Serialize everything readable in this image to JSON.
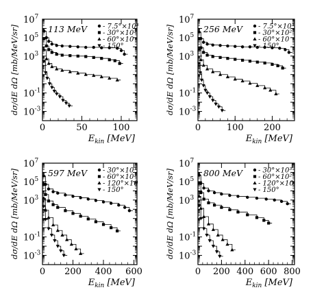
{
  "chart_data": [
    {
      "type": "scatter",
      "title": "113 MeV",
      "xlabel": "E_kin [MeV]",
      "ylabel": "dσ/dE dΩ [mb/MeV/sr]",
      "xlim": [
        0,
        120
      ],
      "ylim_log10": [
        -4,
        7
      ],
      "x_ticks": [
        "0",
        "50",
        "100"
      ],
      "y_ticks": [
        "10^-3",
        "10^-1",
        "10",
        "10^3",
        "10^5",
        "10^7"
      ],
      "series": [
        {
          "name": "7.5°×10³",
          "marker": "circle",
          "exp_hist": true,
          "points": [
            [
              2,
              5.7
            ],
            [
              5,
              5.0
            ],
            [
              8,
              4.6
            ],
            [
              12,
              4.3
            ],
            [
              18,
              4.15
            ],
            [
              25,
              4.1
            ],
            [
              35,
              4.05
            ],
            [
              45,
              4.0
            ],
            [
              55,
              3.95
            ],
            [
              65,
              3.95
            ],
            [
              75,
              3.9
            ],
            [
              85,
              3.9
            ],
            [
              95,
              3.85
            ],
            [
              100,
              3.6
            ],
            [
              104,
              3.2
            ]
          ]
        },
        {
          "name": "30°×10²",
          "marker": "square",
          "exp_hist": true,
          "points": [
            [
              2,
              4.9
            ],
            [
              5,
              4.1
            ],
            [
              8,
              3.7
            ],
            [
              12,
              3.4
            ],
            [
              18,
              3.2
            ],
            [
              25,
              3.1
            ],
            [
              35,
              3.05
            ],
            [
              45,
              3.0
            ],
            [
              55,
              2.95
            ],
            [
              65,
              2.85
            ],
            [
              75,
              2.75
            ],
            [
              85,
              2.6
            ],
            [
              92,
              2.5
            ],
            [
              98,
              2.2
            ]
          ]
        },
        {
          "name": "60°×10",
          "marker": "triangle-up",
          "exp_hist": true,
          "points": [
            [
              2,
              3.7
            ],
            [
              5,
              2.7
            ],
            [
              8,
              2.2
            ],
            [
              12,
              1.85
            ],
            [
              18,
              1.6
            ],
            [
              25,
              1.45
            ],
            [
              35,
              1.3
            ],
            [
              45,
              1.15
            ],
            [
              55,
              1.0
            ],
            [
              65,
              0.9
            ],
            [
              75,
              0.75
            ],
            [
              85,
              0.6
            ],
            [
              95,
              0.4
            ]
          ]
        },
        {
          "name": "150°",
          "marker": "triangle-down",
          "exp_hist": true,
          "points": [
            [
              2,
              2.4
            ],
            [
              4,
              1.2
            ],
            [
              6,
              0.6
            ],
            [
              9,
              0.0
            ],
            [
              12,
              -0.4
            ],
            [
              15,
              -0.8
            ],
            [
              18,
              -1.1
            ],
            [
              22,
              -1.4
            ],
            [
              26,
              -1.8
            ],
            [
              30,
              -2.1
            ],
            [
              34,
              -2.4
            ]
          ]
        }
      ]
    },
    {
      "type": "scatter",
      "title": "256 MeV",
      "xlabel": "E_kin [MeV]",
      "ylabel": "dσ/dE dΩ [mb/MeV/sr]",
      "xlim": [
        0,
        260
      ],
      "ylim_log10": [
        -4,
        7
      ],
      "x_ticks": [
        "0",
        "100",
        "200"
      ],
      "y_ticks": [
        "10^-3",
        "10^-1",
        "10",
        "10^3",
        "10^5",
        "10^7"
      ],
      "series": [
        {
          "name": "7.5°×10³",
          "marker": "circle",
          "exp_hist": true,
          "points": [
            [
              3,
              5.6
            ],
            [
              8,
              4.9
            ],
            [
              15,
              4.5
            ],
            [
              25,
              4.3
            ],
            [
              40,
              4.2
            ],
            [
              60,
              4.15
            ],
            [
              80,
              4.1
            ],
            [
              100,
              4.05
            ],
            [
              120,
              4.0
            ],
            [
              140,
              4.0
            ],
            [
              160,
              3.95
            ],
            [
              180,
              3.95
            ],
            [
              200,
              3.9
            ],
            [
              220,
              3.85
            ],
            [
              235,
              3.7
            ],
            [
              245,
              3.4
            ]
          ]
        },
        {
          "name": "30°×10²",
          "marker": "square",
          "exp_hist": true,
          "points": [
            [
              3,
              4.9
            ],
            [
              8,
              3.9
            ],
            [
              15,
              3.4
            ],
            [
              25,
              3.1
            ],
            [
              40,
              2.95
            ],
            [
              60,
              2.85
            ],
            [
              80,
              2.75
            ],
            [
              100,
              2.65
            ],
            [
              120,
              2.55
            ],
            [
              140,
              2.45
            ],
            [
              160,
              2.35
            ],
            [
              180,
              2.25
            ],
            [
              200,
              2.1
            ],
            [
              215,
              1.95
            ],
            [
              228,
              1.7
            ]
          ]
        },
        {
          "name": "60°×10",
          "marker": "triangle-up",
          "exp_hist": true,
          "points": [
            [
              3,
              3.7
            ],
            [
              8,
              2.6
            ],
            [
              15,
              2.0
            ],
            [
              25,
              1.6
            ],
            [
              40,
              1.3
            ],
            [
              60,
              1.0
            ],
            [
              80,
              0.75
            ],
            [
              100,
              0.5
            ],
            [
              120,
              0.3
            ],
            [
              140,
              0.05
            ],
            [
              160,
              -0.2
            ],
            [
              180,
              -0.45
            ],
            [
              195,
              -0.7
            ],
            [
              210,
              -1.1
            ]
          ]
        },
        {
          "name": "150°",
          "marker": "triangle-down",
          "exp_hist": true,
          "points": [
            [
              3,
              2.2
            ],
            [
              6,
              1.2
            ],
            [
              10,
              0.4
            ],
            [
              15,
              -0.2
            ],
            [
              20,
              -0.7
            ],
            [
              25,
              -1.0
            ],
            [
              32,
              -1.4
            ],
            [
              40,
              -1.8
            ],
            [
              48,
              -2.2
            ],
            [
              56,
              -2.5
            ],
            [
              65,
              -2.9
            ]
          ]
        }
      ]
    },
    {
      "type": "scatter",
      "title": "597 MeV",
      "xlabel": "E_kin [MeV]",
      "ylabel": "dσ/dE dΩ [mb/MeV/sr]",
      "xlim": [
        0,
        620
      ],
      "ylim_log10": [
        -4,
        7
      ],
      "x_ticks": [
        "0",
        "200",
        "400",
        "600"
      ],
      "y_ticks": [
        "10^-3",
        "10^-1",
        "10",
        "10^3",
        "10^5",
        "10^7"
      ],
      "series": [
        {
          "name": "30°×10³",
          "marker": "circle",
          "exp_hist": true,
          "points": [
            [
              8,
              5.6
            ],
            [
              20,
              4.7
            ],
            [
              40,
              4.2
            ],
            [
              70,
              3.9
            ],
            [
              100,
              3.75
            ],
            [
              150,
              3.55
            ],
            [
              200,
              3.4
            ],
            [
              250,
              3.25
            ],
            [
              300,
              3.1
            ],
            [
              350,
              2.95
            ],
            [
              400,
              2.8
            ],
            [
              450,
              2.65
            ],
            [
              500,
              2.45
            ],
            [
              540,
              2.2
            ],
            [
              570,
              1.85
            ]
          ]
        },
        {
          "name": "60°×10²",
          "marker": "square",
          "exp_hist": true,
          "points": [
            [
              8,
              4.7
            ],
            [
              20,
              3.6
            ],
            [
              40,
              2.9
            ],
            [
              70,
              2.5
            ],
            [
              100,
              2.2
            ],
            [
              150,
              1.85
            ],
            [
              200,
              1.55
            ],
            [
              250,
              1.25
            ],
            [
              300,
              0.95
            ],
            [
              350,
              0.65
            ],
            [
              400,
              0.35
            ],
            [
              450,
              0.0
            ],
            [
              490,
              -0.35
            ]
          ]
        },
        {
          "name": "120°×10",
          "marker": "triangle-up",
          "exp_hist": true,
          "points": [
            [
              8,
              3.2
            ],
            [
              20,
              1.9
            ],
            [
              40,
              1.1
            ],
            [
              70,
              0.3
            ],
            [
              100,
              -0.3
            ],
            [
              130,
              -0.8
            ],
            [
              160,
              -1.3
            ],
            [
              190,
              -1.8
            ],
            [
              220,
              -2.3
            ],
            [
              250,
              -2.8
            ]
          ]
        },
        {
          "name": "150°",
          "marker": "triangle-down",
          "exp_hist": true,
          "points": [
            [
              8,
              2.3
            ],
            [
              20,
              0.9
            ],
            [
              40,
              -0.1
            ],
            [
              60,
              -0.8
            ],
            [
              80,
              -1.4
            ],
            [
              100,
              -2.0
            ],
            [
              120,
              -2.5
            ],
            [
              140,
              -3.0
            ]
          ]
        }
      ]
    },
    {
      "type": "scatter",
      "title": "800 MeV",
      "xlabel": "E_kin [MeV]",
      "ylabel": "dσ/dE dΩ [mb/MeV/sr]",
      "xlim": [
        0,
        820
      ],
      "ylim_log10": [
        -4,
        7
      ],
      "x_ticks": [
        "0",
        "200",
        "400",
        "600",
        "800"
      ],
      "y_ticks": [
        "10^-3",
        "10^-1",
        "10",
        "10^3",
        "10^5",
        "10^7"
      ],
      "series": [
        {
          "name": "30°×10³",
          "marker": "circle",
          "exp_hist": true,
          "points": [
            [
              10,
              5.7
            ],
            [
              25,
              4.8
            ],
            [
              50,
              4.3
            ],
            [
              90,
              4.0
            ],
            [
              140,
              3.8
            ],
            [
              200,
              3.65
            ],
            [
              270,
              3.5
            ],
            [
              340,
              3.4
            ],
            [
              420,
              3.3
            ],
            [
              500,
              3.2
            ],
            [
              580,
              3.1
            ],
            [
              650,
              3.0
            ],
            [
              710,
              2.85
            ],
            [
              760,
              2.6
            ]
          ]
        },
        {
          "name": "60°×10²",
          "marker": "square",
          "exp_hist": true,
          "points": [
            [
              10,
              4.8
            ],
            [
              25,
              3.8
            ],
            [
              50,
              3.1
            ],
            [
              90,
              2.7
            ],
            [
              140,
              2.45
            ],
            [
              200,
              2.2
            ],
            [
              270,
              1.95
            ],
            [
              340,
              1.7
            ],
            [
              420,
              1.4
            ],
            [
              500,
              1.1
            ],
            [
              560,
              0.8
            ],
            [
              600,
              0.5
            ]
          ]
        },
        {
          "name": "120°×10",
          "marker": "triangle-up",
          "exp_hist": true,
          "points": [
            [
              10,
              3.4
            ],
            [
              25,
              2.1
            ],
            [
              50,
              1.2
            ],
            [
              90,
              0.4
            ],
            [
              130,
              -0.2
            ],
            [
              170,
              -0.8
            ],
            [
              210,
              -1.3
            ],
            [
              250,
              -1.8
            ],
            [
              290,
              -2.4
            ]
          ]
        },
        {
          "name": "150°",
          "marker": "triangle-down",
          "exp_hist": true,
          "points": [
            [
              10,
              2.4
            ],
            [
              25,
              1.0
            ],
            [
              50,
              -0.1
            ],
            [
              75,
              -0.8
            ],
            [
              100,
              -1.4
            ],
            [
              130,
              -2.0
            ],
            [
              160,
              -2.6
            ],
            [
              185,
              -3.1
            ]
          ]
        }
      ]
    }
  ]
}
